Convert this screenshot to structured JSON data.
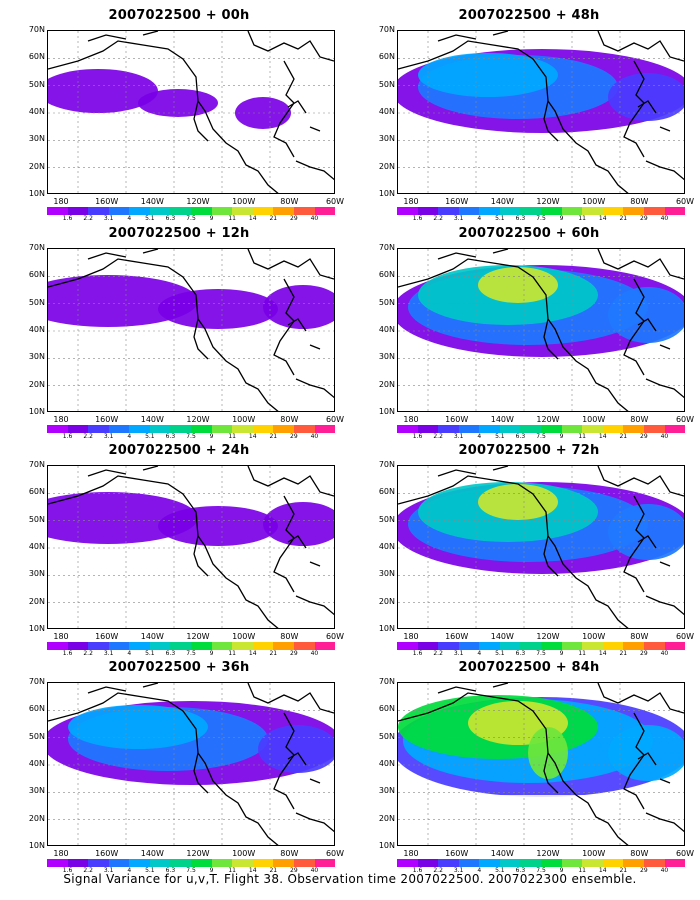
{
  "caption": "Signal Variance for u,v,T. Flight 38. Observation time 2007022500. 2007022300 ensemble.",
  "latitude_labels": [
    "70N",
    "60N",
    "50N",
    "40N",
    "30N",
    "20N",
    "10N"
  ],
  "longitude_labels": [
    "180",
    "160W",
    "140W",
    "120W",
    "100W",
    "80W",
    "60W"
  ],
  "colorbar": {
    "labels": [
      "1.6",
      "2.2",
      "3.1",
      "4",
      "5.1",
      "6.3",
      "7.5",
      "9",
      "11",
      "14",
      "21",
      "29",
      "40"
    ],
    "colors": [
      "#b000ff",
      "#7a00e6",
      "#4a3cff",
      "#1e78ff",
      "#00a8ff",
      "#00c8c8",
      "#00d28c",
      "#00dc3c",
      "#6ee63c",
      "#c8e632",
      "#ffd200",
      "#ffa000",
      "#ff5a3c",
      "#ff1e96"
    ]
  },
  "panels": [
    {
      "title": "2007022500 + 00h",
      "level": 0
    },
    {
      "title": "2007022500 + 48h",
      "level": 2
    },
    {
      "title": "2007022500 + 12h",
      "level": 1
    },
    {
      "title": "2007022500 + 60h",
      "level": 3
    },
    {
      "title": "2007022500 + 24h",
      "level": 1
    },
    {
      "title": "2007022500 + 72h",
      "level": 3
    },
    {
      "title": "2007022500 + 36h",
      "level": 2
    },
    {
      "title": "2007022500 + 84h",
      "level": 4
    }
  ]
}
